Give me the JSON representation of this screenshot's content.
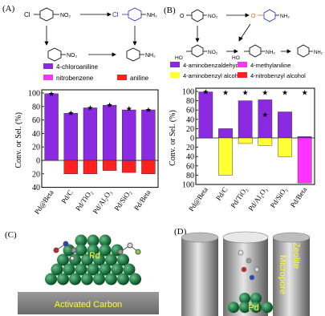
{
  "panels": {
    "A": {
      "label": "(A)",
      "scheme": {
        "prefix": "Cl",
        "top_left_group": "NO₂",
        "top_right_prefix": "Cl",
        "top_right_group": "NH₂",
        "bottom_left_group": "NO₂",
        "bottom_right_group": "NH₂"
      }
    },
    "B": {
      "label": "(B)",
      "scheme": {
        "top_left_o": "O",
        "top_left_group": "NO₂",
        "top_right_o": "O",
        "top_right_group": "NH₂",
        "bottom_left_ho": "HO",
        "bottom_left_group": "NO₂",
        "bottom_mid_ho": "HO",
        "bottom_mid_group": "NH₂",
        "bottom_right_group": "NH₂"
      }
    },
    "C": {
      "label": "(C)",
      "metal": "Pd",
      "support": "Activated Carbon"
    },
    "D": {
      "label": "(D)",
      "metal": "Pd",
      "zeolite": "Zeolite",
      "micropore": "Micropore"
    }
  },
  "chart_data": [
    {
      "type": "bar",
      "panel": "A",
      "categories": [
        "Pd@Beta",
        "Pd/C",
        "Pd/TiO₂",
        "Pd/Al₂O₃",
        "Pd/SiO₂",
        "Pd/Beta"
      ],
      "ylabel": "Conv. or Sel. (%)",
      "ylim": [
        -40,
        100
      ],
      "yticks_pos": [
        0,
        20,
        40,
        60,
        80,
        100
      ],
      "yticks_neg": [
        20,
        40
      ],
      "conversion": [
        99,
        70,
        78,
        82,
        77,
        75
      ],
      "series": [
        {
          "name": "4-chloroaniline",
          "color": "#8a2be2",
          "values": [
            99,
            70,
            78,
            82,
            75,
            75
          ],
          "direction": "up"
        },
        {
          "name": "nitrobenzene",
          "color": "#ff33ff",
          "values": [
            0,
            0,
            0,
            0,
            1,
            0
          ],
          "direction": "down"
        },
        {
          "name": "aniline",
          "color": "#ff2020",
          "values": [
            0,
            20,
            20,
            15,
            17,
            20
          ],
          "direction": "down"
        }
      ]
    },
    {
      "type": "bar",
      "panel": "B",
      "categories": [
        "Pd@Beta",
        "Pd/C",
        "Pd/TiO₂",
        "Pd/Al₂O₃",
        "Pd/SiO₂",
        "Pd/Beta"
      ],
      "ylabel": "Conv. or Sel. (%)",
      "ylim": [
        -100,
        100
      ],
      "yticks_pos": [
        0,
        20,
        40,
        60,
        80,
        100
      ],
      "yticks_neg": [
        20,
        40,
        60,
        80,
        100
      ],
      "conversion": [
        99,
        97,
        97,
        97,
        97,
        97
      ],
      "series": [
        {
          "name": "4-aminobenzaldehyde",
          "color": "#8a2be2",
          "values": [
            99,
            20,
            80,
            82,
            56,
            3
          ],
          "direction": "up"
        },
        {
          "name": "4-methylaniline",
          "color": "#ff33ff",
          "values": [
            0,
            0,
            0,
            0,
            0,
            97
          ],
          "direction": "down"
        },
        {
          "name": "4-aminobenzyl alcohol",
          "color": "#ffff33",
          "values": [
            0,
            80,
            12,
            16,
            40,
            0
          ],
          "direction": "down"
        },
        {
          "name": "4-nitrobenzyl alcohol",
          "color": "#ff2020",
          "values": [
            0,
            0,
            0,
            0,
            0,
            0
          ],
          "direction": "down"
        }
      ],
      "extra_stars": [
        {
          "category": "Pd/Al₂O₃",
          "value": 50
        }
      ]
    }
  ]
}
